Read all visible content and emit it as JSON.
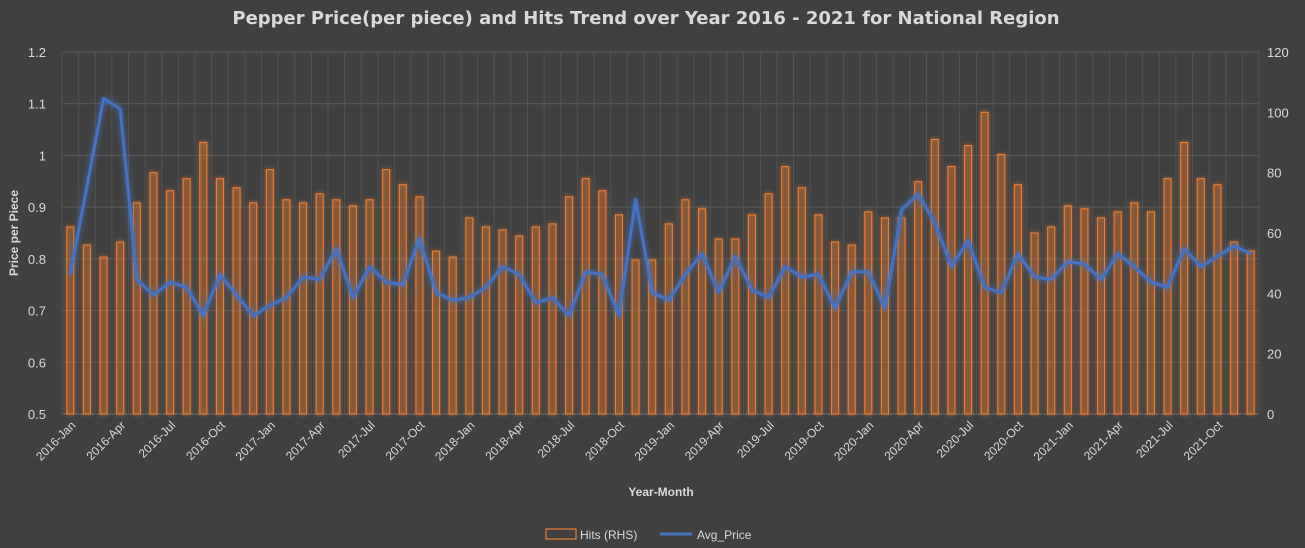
{
  "chart_data": {
    "type": "bar",
    "title": "Pepper Price(per piece) and Hits Trend over Year 2016 - 2021 for National Region",
    "xlabel": "Year-Month",
    "ylabel": "Price per Piece",
    "ylabel_right": "",
    "ylim": [
      0.5,
      1.2
    ],
    "ylim_right": [
      0,
      120
    ],
    "y_ticks": [
      "0.5",
      "0.6",
      "0.7",
      "0.8",
      "0.9",
      "1",
      "1.1",
      "1.2"
    ],
    "y_ticks_right": [
      "0",
      "20",
      "40",
      "60",
      "80",
      "100",
      "120"
    ],
    "grid": true,
    "legend_position": "bottom",
    "x_tick_labels": [
      "2016-Jan",
      "2016-Apr",
      "2016-Jul",
      "2016-Oct",
      "2017-Jan",
      "2017-Apr",
      "2017-Jul",
      "2017-Oct",
      "2018-Jan",
      "2018-Apr",
      "2018-Jul",
      "2018-Oct",
      "2019-Jan",
      "2019-Apr",
      "2019-Jul",
      "2019-Oct",
      "2020-Jan",
      "2020-Apr",
      "2020-Jul",
      "2020-Oct",
      "2021-Jan",
      "2021-Apr",
      "2021-Jul",
      "2021-Oct"
    ],
    "categories": [
      "2016-Jan",
      "2016-Feb",
      "2016-Mar",
      "2016-Apr",
      "2016-May",
      "2016-Jun",
      "2016-Jul",
      "2016-Aug",
      "2016-Sep",
      "2016-Oct",
      "2016-Nov",
      "2016-Dec",
      "2017-Jan",
      "2017-Feb",
      "2017-Mar",
      "2017-Apr",
      "2017-May",
      "2017-Jun",
      "2017-Jul",
      "2017-Aug",
      "2017-Sep",
      "2017-Oct",
      "2017-Nov",
      "2017-Dec",
      "2018-Jan",
      "2018-Feb",
      "2018-Mar",
      "2018-Apr",
      "2018-May",
      "2018-Jun",
      "2018-Jul",
      "2018-Aug",
      "2018-Sep",
      "2018-Oct",
      "2018-Nov",
      "2018-Dec",
      "2019-Jan",
      "2019-Feb",
      "2019-Mar",
      "2019-Apr",
      "2019-May",
      "2019-Jun",
      "2019-Jul",
      "2019-Aug",
      "2019-Sep",
      "2019-Oct",
      "2019-Nov",
      "2019-Dec",
      "2020-Jan",
      "2020-Feb",
      "2020-Mar",
      "2020-Apr",
      "2020-May",
      "2020-Jun",
      "2020-Jul",
      "2020-Aug",
      "2020-Sep",
      "2020-Oct",
      "2020-Nov",
      "2020-Dec",
      "2021-Jan",
      "2021-Feb",
      "2021-Mar",
      "2021-Apr",
      "2021-May",
      "2021-Jun",
      "2021-Jul",
      "2021-Aug",
      "2021-Sep",
      "2021-Oct",
      "2021-Nov",
      "2021-Dec"
    ],
    "series": [
      {
        "name": "Hits (RHS)",
        "type": "bar",
        "axis": "right",
        "color": "#ed7d31",
        "values": [
          62,
          56,
          52,
          57,
          70,
          80,
          74,
          78,
          90,
          78,
          75,
          70,
          81,
          71,
          70,
          73,
          71,
          69,
          71,
          81,
          76,
          72,
          54,
          52,
          65,
          62,
          61,
          59,
          62,
          63,
          72,
          78,
          74,
          66,
          51,
          51,
          63,
          71,
          68,
          58,
          58,
          66,
          73,
          82,
          75,
          66,
          57,
          56,
          67,
          65,
          65,
          77,
          91,
          82,
          89,
          100,
          86,
          76,
          60,
          62,
          69,
          68,
          65,
          67,
          70,
          67,
          78,
          90,
          78,
          76,
          57,
          54
        ]
      },
      {
        "name": "Avg_Price",
        "type": "line",
        "axis": "left",
        "color": "#4472c4",
        "values": [
          0.77,
          0.94,
          1.11,
          1.09,
          0.76,
          0.73,
          0.755,
          0.745,
          0.69,
          0.77,
          0.73,
          0.69,
          0.71,
          0.725,
          0.765,
          0.76,
          0.82,
          0.725,
          0.785,
          0.755,
          0.75,
          0.84,
          0.735,
          0.72,
          0.725,
          0.745,
          0.785,
          0.77,
          0.715,
          0.725,
          0.69,
          0.775,
          0.77,
          0.69,
          0.915,
          0.735,
          0.72,
          0.77,
          0.81,
          0.735,
          0.805,
          0.74,
          0.725,
          0.785,
          0.765,
          0.77,
          0.705,
          0.775,
          0.775,
          0.705,
          0.895,
          0.925,
          0.87,
          0.785,
          0.835,
          0.745,
          0.735,
          0.81,
          0.765,
          0.76,
          0.795,
          0.79,
          0.76,
          0.81,
          0.785,
          0.755,
          0.745,
          0.82,
          0.785,
          0.805,
          0.825,
          0.81
        ]
      }
    ]
  }
}
